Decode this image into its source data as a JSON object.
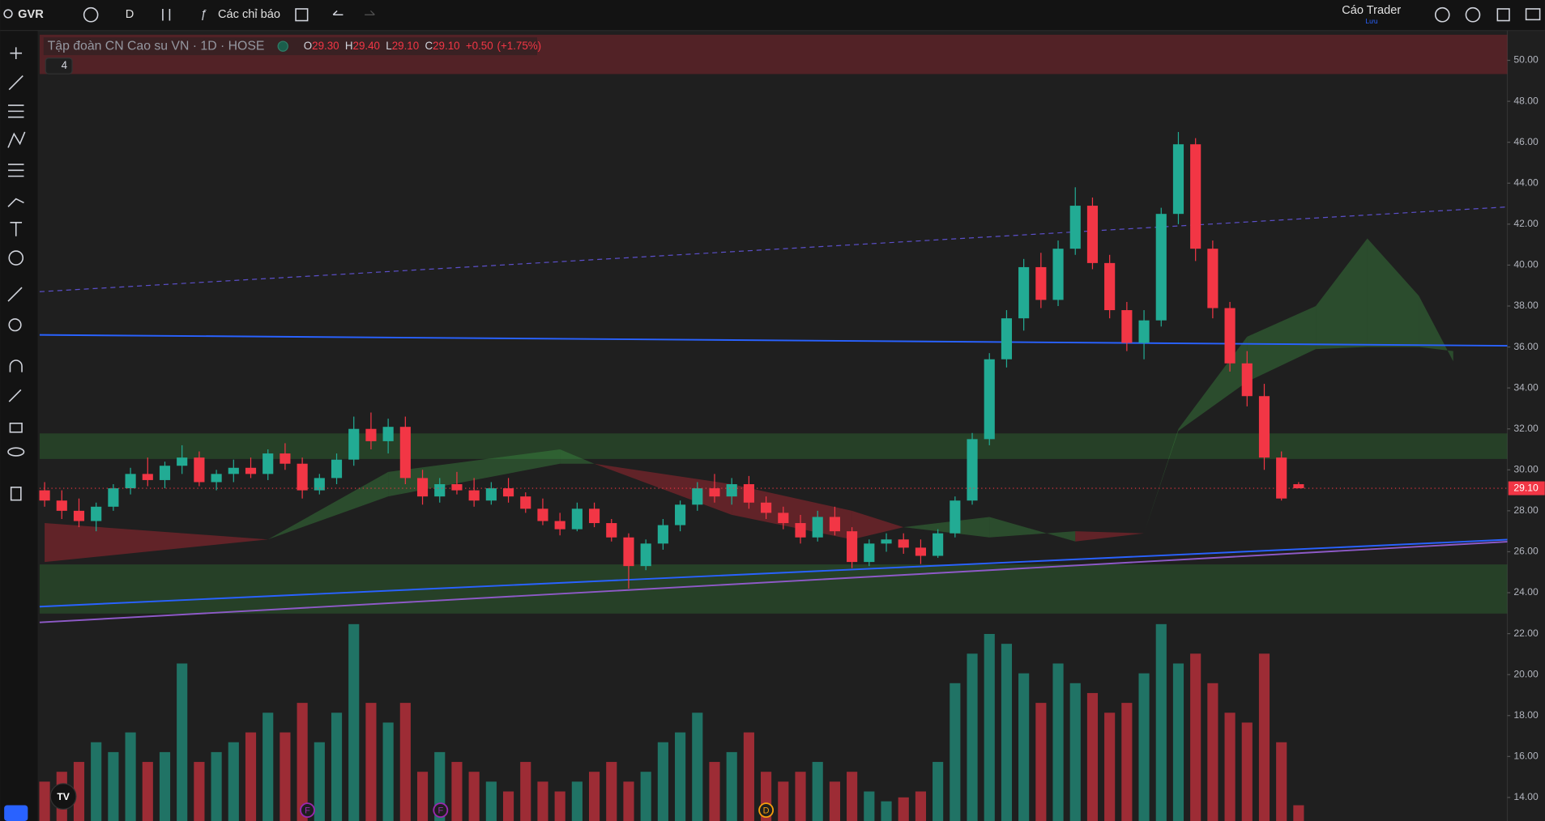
{
  "toolbar": {
    "symbol": "GVR",
    "interval": "D",
    "indicators": "Các chỉ báo",
    "user": "Cáo Trader",
    "user_sub": "Lưu"
  },
  "chart_data": {
    "type": "candlestick",
    "title": "Tập đoàn CN Cao su VN · 1D · HOSE",
    "ohlc": [
      {
        "key": "O",
        "value": 29.3,
        "label": "29.30"
      },
      {
        "key": "H",
        "value": 29.4,
        "label": "29.40"
      },
      {
        "key": "L",
        "value": 29.1,
        "label": "29.10"
      },
      {
        "key": "C",
        "value": 29.1,
        "label": "29.10"
      }
    ],
    "change": {
      "value": 0.5,
      "label": "+0.50"
    },
    "change_pct": {
      "value": 1.75,
      "label": "(+1.75%)"
    },
    "indicator_count": "4",
    "up_color": "#22ab94",
    "down_color": "#f23645",
    "open": [
      29.0,
      28.5,
      28.0,
      27.5,
      28.2,
      29.1,
      29.8,
      29.5,
      30.2,
      30.6,
      29.4,
      29.8,
      30.1,
      29.8,
      30.8,
      30.3,
      29.0,
      29.6,
      30.5,
      32.0,
      31.4,
      32.1,
      29.6,
      28.7,
      29.3,
      29.0,
      28.5,
      29.1,
      28.7,
      28.1,
      27.5,
      27.1,
      28.1,
      27.4,
      26.7,
      25.3,
      26.4,
      27.3,
      28.3,
      29.1,
      28.7,
      29.3,
      28.4,
      27.9,
      27.4,
      26.7,
      27.7,
      27.0,
      25.5,
      26.4,
      26.6,
      26.2,
      25.8,
      26.9,
      28.5,
      31.5,
      35.4,
      37.4,
      39.9,
      38.3,
      40.8,
      42.9,
      40.1,
      37.8,
      36.2,
      37.3,
      42.5,
      45.9,
      40.8,
      37.9,
      35.2,
      33.6,
      30.6,
      29.3
    ],
    "high": [
      29.4,
      29.0,
      28.6,
      28.4,
      29.3,
      30.1,
      30.6,
      30.4,
      31.2,
      30.9,
      30.0,
      30.5,
      30.6,
      31.0,
      31.3,
      30.6,
      29.8,
      30.8,
      32.6,
      32.8,
      32.5,
      32.6,
      30.0,
      29.6,
      29.9,
      29.6,
      29.4,
      29.6,
      28.9,
      28.6,
      27.9,
      28.4,
      28.4,
      27.6,
      26.9,
      26.6,
      27.6,
      28.5,
      29.4,
      29.8,
      29.6,
      29.7,
      28.7,
      28.2,
      27.8,
      28.0,
      28.2,
      27.2,
      26.6,
      26.9,
      26.9,
      26.6,
      27.1,
      28.7,
      31.8,
      35.7,
      37.8,
      40.3,
      40.6,
      41.2,
      43.8,
      43.3,
      40.5,
      38.2,
      37.8,
      42.8,
      46.5,
      46.2,
      41.2,
      38.2,
      35.8,
      34.2,
      30.9,
      29.4
    ],
    "low": [
      28.2,
      27.6,
      27.2,
      27.0,
      28.0,
      28.8,
      29.2,
      29.1,
      29.8,
      29.2,
      29.0,
      29.4,
      29.6,
      29.5,
      30.0,
      28.6,
      28.8,
      29.3,
      30.2,
      31.0,
      30.8,
      29.3,
      28.3,
      28.4,
      28.8,
      28.2,
      28.3,
      28.4,
      27.9,
      27.3,
      26.8,
      27.0,
      27.2,
      26.5,
      24.2,
      25.1,
      26.1,
      27.0,
      28.0,
      28.4,
      28.3,
      28.1,
      27.6,
      27.1,
      26.4,
      26.5,
      26.8,
      25.2,
      25.3,
      26.0,
      25.9,
      25.4,
      25.7,
      26.7,
      28.3,
      31.2,
      35.0,
      36.8,
      37.9,
      38.0,
      40.5,
      39.8,
      37.4,
      35.8,
      35.4,
      37.0,
      42.0,
      40.2,
      37.4,
      34.8,
      33.1,
      30.0,
      28.5,
      29.1
    ],
    "close": [
      28.5,
      28.0,
      27.5,
      28.2,
      29.1,
      29.8,
      29.5,
      30.2,
      30.6,
      29.4,
      29.8,
      30.1,
      29.8,
      30.8,
      30.3,
      29.0,
      29.6,
      30.5,
      32.0,
      31.4,
      32.1,
      29.6,
      28.7,
      29.3,
      29.0,
      28.5,
      29.1,
      28.7,
      28.1,
      27.5,
      27.1,
      28.1,
      27.4,
      26.7,
      25.3,
      26.4,
      27.3,
      28.3,
      29.1,
      28.7,
      29.3,
      28.4,
      27.9,
      27.4,
      26.7,
      27.7,
      27.0,
      25.5,
      26.4,
      26.6,
      26.2,
      25.8,
      26.9,
      28.5,
      31.5,
      35.4,
      37.4,
      39.9,
      38.3,
      40.8,
      42.9,
      40.1,
      37.8,
      36.2,
      37.3,
      42.5,
      45.9,
      40.8,
      37.9,
      35.2,
      33.6,
      30.6,
      28.6,
      29.1
    ],
    "volume": [
      20,
      25,
      30,
      40,
      35,
      45,
      30,
      35,
      80,
      30,
      35,
      40,
      45,
      55,
      45,
      60,
      40,
      55,
      100,
      60,
      50,
      60,
      25,
      35,
      30,
      25,
      20,
      15,
      30,
      20,
      15,
      20,
      25,
      30,
      20,
      25,
      40,
      45,
      55,
      30,
      35,
      45,
      25,
      20,
      25,
      30,
      20,
      25,
      15,
      10,
      12,
      15,
      30,
      70,
      85,
      95,
      90,
      75,
      60,
      80,
      70,
      65,
      55,
      60,
      75,
      100,
      80,
      85,
      70,
      55,
      50,
      85,
      40,
      8
    ],
    "volume_ylim": [
      0,
      100
    ],
    "xlim": [
      -0.29,
      85.15
    ],
    "ylim": [
      12.85,
      51.36
    ],
    "yticks": [
      {
        "value": 14,
        "label": "14.00"
      },
      {
        "value": 16,
        "label": "16.00"
      },
      {
        "value": 18,
        "label": "18.00"
      },
      {
        "value": 20,
        "label": "20.00"
      },
      {
        "value": 22,
        "label": "22.00"
      },
      {
        "value": 24,
        "label": "24.00"
      },
      {
        "value": 26,
        "label": "26.00"
      },
      {
        "value": 28,
        "label": "28.00"
      },
      {
        "value": 30,
        "label": "30.00"
      },
      {
        "value": 32,
        "label": "32.00"
      },
      {
        "value": 34,
        "label": "34.00"
      },
      {
        "value": 36,
        "label": "36.00"
      },
      {
        "value": 38,
        "label": "38.00"
      },
      {
        "value": 40,
        "label": "40.00"
      },
      {
        "value": 42,
        "label": "42.00"
      },
      {
        "value": 44,
        "label": "44.00"
      },
      {
        "value": 46,
        "label": "46.00"
      },
      {
        "value": 48,
        "label": "48.00"
      },
      {
        "value": 50,
        "label": "50.00"
      }
    ],
    "last_price": {
      "value": 29.1,
      "label": "29.10"
    },
    "zones": [
      {
        "from": 49.33,
        "to": 51.25,
        "color": "rgba(178,40,51,0.35)"
      },
      {
        "from": 30.53,
        "to": 31.78,
        "color": "rgba(56,142,60,0.3)"
      },
      {
        "from": 22.98,
        "to": 25.38,
        "color": "rgba(56,142,60,0.3)"
      }
    ],
    "cloud": {
      "x": [
        0,
        13,
        20,
        30,
        32,
        40,
        47,
        50,
        55,
        60,
        64,
        66,
        70,
        74,
        77,
        80,
        82
      ],
      "a": [
        25.5,
        26.6,
        29.9,
        31.0,
        30.3,
        27.8,
        26.6,
        27.2,
        27.7,
        26.5,
        26.9,
        32.0,
        36.5,
        38.0,
        41.3,
        38.5,
        35.3
      ],
      "b": [
        27.4,
        26.6,
        28.7,
        30.3,
        30.3,
        29.3,
        28.0,
        27.2,
        26.7,
        27.0,
        26.9,
        31.9,
        34.3,
        35.9,
        36.0,
        36.0,
        35.8
      ],
      "up_color": "rgba(67,160,71,0.35)",
      "down_color": "rgba(178,40,51,0.45)"
    },
    "lines": [
      {
        "x": [
          -0.29,
          85.15
        ],
        "y": [
          36.59,
          36.06
        ],
        "color": "#2962ff",
        "dashed": false
      },
      {
        "x": [
          -0.29,
          85.15
        ],
        "y": [
          38.7,
          42.84
        ],
        "color": "#5b4fc9",
        "dashed": true
      },
      {
        "x": [
          -0.29,
          85.15
        ],
        "y": [
          23.32,
          26.59
        ],
        "color": "#2962ff",
        "dashed": false
      },
      {
        "x": [
          -0.29,
          85.15
        ],
        "y": [
          22.55,
          26.49
        ],
        "color": "#8e5ac8",
        "dashed": false
      }
    ],
    "events": [
      {
        "x": 15.3,
        "label": "F",
        "color": "#9c27b0"
      },
      {
        "x": 23.05,
        "label": "F",
        "color": "#9c27b0"
      },
      {
        "x": 42.0,
        "label": "D",
        "color": "#f59d0e"
      }
    ]
  }
}
